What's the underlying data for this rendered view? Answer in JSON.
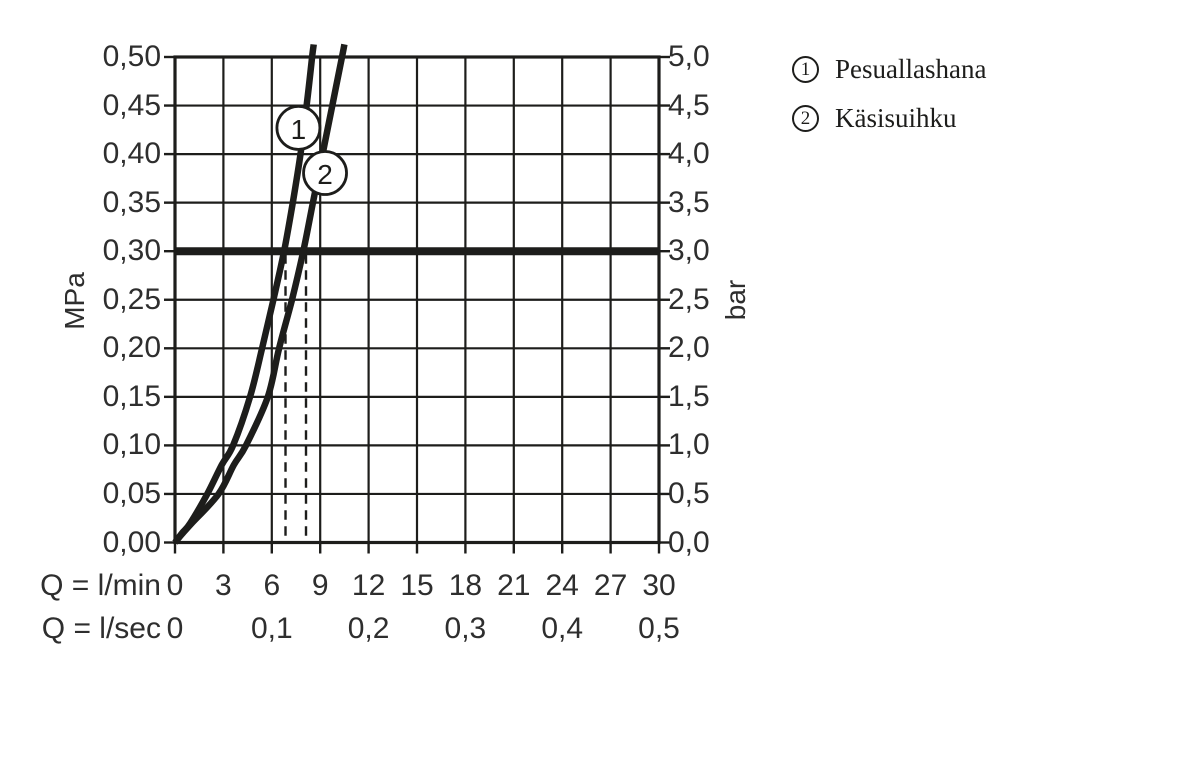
{
  "legend": {
    "items": [
      {
        "symbol": "1",
        "label": "Pesuallashana"
      },
      {
        "symbol": "2",
        "label": "Käsisuihku"
      }
    ]
  },
  "chart_data": {
    "type": "line",
    "ink_color": "#1d1d1b",
    "grid": true,
    "x_axis": {
      "label_min": "Q = l/min",
      "label_sec": "Q = l/sec",
      "lmin_ticks": [
        "0",
        "3",
        "6",
        "9",
        "12",
        "15",
        "18",
        "21",
        "24",
        "27",
        "30"
      ],
      "lsec_ticks": [
        "0",
        "0,1",
        "0,2",
        "0,3",
        "0,4",
        "0,5"
      ],
      "range_lmin": [
        0,
        30
      ]
    },
    "y_axis_left": {
      "unit": "MPa",
      "ticks": [
        "0,50",
        "0,45",
        "0,40",
        "0,35",
        "0,30",
        "0,25",
        "0,20",
        "0,15",
        "0,10",
        "0,05",
        "0,00"
      ],
      "range_mpa": [
        0,
        0.5
      ]
    },
    "y_axis_right": {
      "unit": "bar",
      "ticks": [
        "5,0",
        "4,5",
        "4,0",
        "3,5",
        "3,0",
        "2,5",
        "2,0",
        "1,5",
        "1,0",
        "0,5",
        "0,0"
      ],
      "range_bar": [
        0,
        5
      ]
    },
    "reference_line_mpa": 0.3,
    "dashed_guides_lmin": [
      6.85,
      8.12
    ],
    "series": [
      {
        "id": "1",
        "name": "Pesuallashana",
        "points_lmin_mpa": [
          [
            0,
            0
          ],
          [
            0.45,
            0.01
          ],
          [
            0.95,
            0.02
          ],
          [
            2.0,
            0.05
          ],
          [
            2.9,
            0.08
          ],
          [
            3.6,
            0.1
          ],
          [
            4.65,
            0.15
          ],
          [
            5.4,
            0.2
          ],
          [
            6.1,
            0.25
          ],
          [
            6.76,
            0.3
          ],
          [
            7.3,
            0.35
          ],
          [
            7.78,
            0.4
          ],
          [
            8.16,
            0.45
          ],
          [
            8.5,
            0.5
          ],
          [
            8.6,
            0.513
          ]
        ],
        "marker": {
          "label": "1",
          "q_lmin": 7.65,
          "p_mpa": 0.427
        }
      },
      {
        "id": "2",
        "name": "Käsisuihku",
        "points_lmin_mpa": [
          [
            0,
            0
          ],
          [
            0.5,
            0.01
          ],
          [
            1.05,
            0.02
          ],
          [
            2.7,
            0.05
          ],
          [
            3.65,
            0.08
          ],
          [
            4.4,
            0.1
          ],
          [
            5.75,
            0.15
          ],
          [
            6.45,
            0.2
          ],
          [
            7.25,
            0.25
          ],
          [
            7.95,
            0.3
          ],
          [
            8.55,
            0.35
          ],
          [
            9.15,
            0.4
          ],
          [
            9.75,
            0.45
          ],
          [
            10.35,
            0.5
          ],
          [
            10.5,
            0.513
          ]
        ],
        "marker": {
          "label": "2",
          "q_lmin": 9.3,
          "p_mpa": 0.3805
        }
      }
    ]
  }
}
